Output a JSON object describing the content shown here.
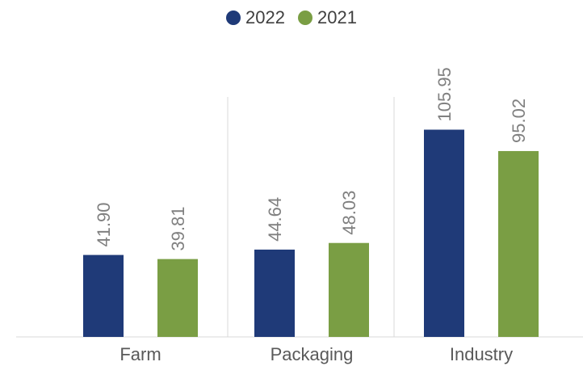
{
  "chart_data": {
    "type": "bar",
    "categories": [
      "Farm",
      "Packaging",
      "Industry"
    ],
    "series": [
      {
        "name": "2022",
        "color": "#1f3a78",
        "values": [
          41.9,
          44.64,
          105.95
        ]
      },
      {
        "name": "2021",
        "color": "#7a9e44",
        "values": [
          39.81,
          48.03,
          95.02
        ]
      }
    ],
    "value_labels": [
      [
        "41.90",
        "44.64",
        "105.95"
      ],
      [
        "39.81",
        "48.03",
        "95.02"
      ]
    ],
    "ylim": [
      0,
      125
    ],
    "grid": false,
    "legend_position": "top-center",
    "category_separators": true,
    "label_orientation": "vertical"
  }
}
